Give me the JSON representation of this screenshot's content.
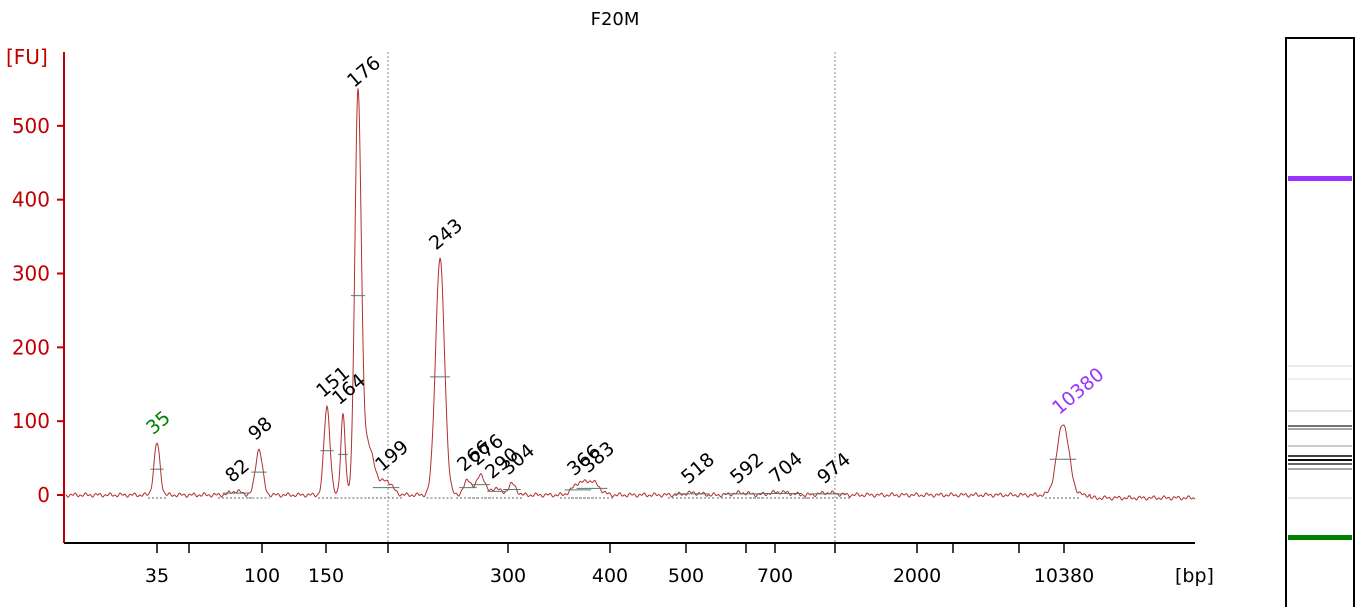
{
  "chart_data": {
    "type": "line",
    "title": "F20M",
    "ylabel": "[FU]",
    "xlabel": "[bp]",
    "ylim": [
      -65,
      600
    ],
    "y_ticks": [
      0,
      100,
      200,
      300,
      400,
      500
    ],
    "x_ticks": [
      "35",
      "100",
      "150",
      "300",
      "400",
      "500",
      "700",
      "2000",
      "10380"
    ],
    "peaks": [
      {
        "label": "35",
        "value": 70,
        "color": "#008000"
      },
      {
        "label": "82",
        "value": 5,
        "color": "#000000"
      },
      {
        "label": "98",
        "value": 62,
        "color": "#000000"
      },
      {
        "label": "151",
        "value": 120,
        "color": "#000000"
      },
      {
        "label": "164",
        "value": 110,
        "color": "#000000"
      },
      {
        "label": "176",
        "value": 540,
        "color": "#000000"
      },
      {
        "label": "199",
        "value": 20,
        "color": "#000000"
      },
      {
        "label": "243",
        "value": 320,
        "color": "#000000"
      },
      {
        "label": "266",
        "value": 20,
        "color": "#000000"
      },
      {
        "label": "276",
        "value": 28,
        "color": "#000000"
      },
      {
        "label": "290",
        "value": 10,
        "color": "#000000"
      },
      {
        "label": "304",
        "value": 15,
        "color": "#000000"
      },
      {
        "label": "366",
        "value": 14,
        "color": "#000000"
      },
      {
        "label": "383",
        "value": 18,
        "color": "#000000"
      },
      {
        "label": "518",
        "value": 3,
        "color": "#000000"
      },
      {
        "label": "592",
        "value": 3,
        "color": "#000000"
      },
      {
        "label": "704",
        "value": 4,
        "color": "#000000"
      },
      {
        "label": "974",
        "value": 3,
        "color": "#000000"
      },
      {
        "label": "10380",
        "value": 97,
        "color": "#9933ff"
      }
    ],
    "gel_bands": [
      {
        "label": "10380",
        "color": "#9933ff"
      },
      {
        "label": "35",
        "color": "#008000"
      }
    ]
  }
}
